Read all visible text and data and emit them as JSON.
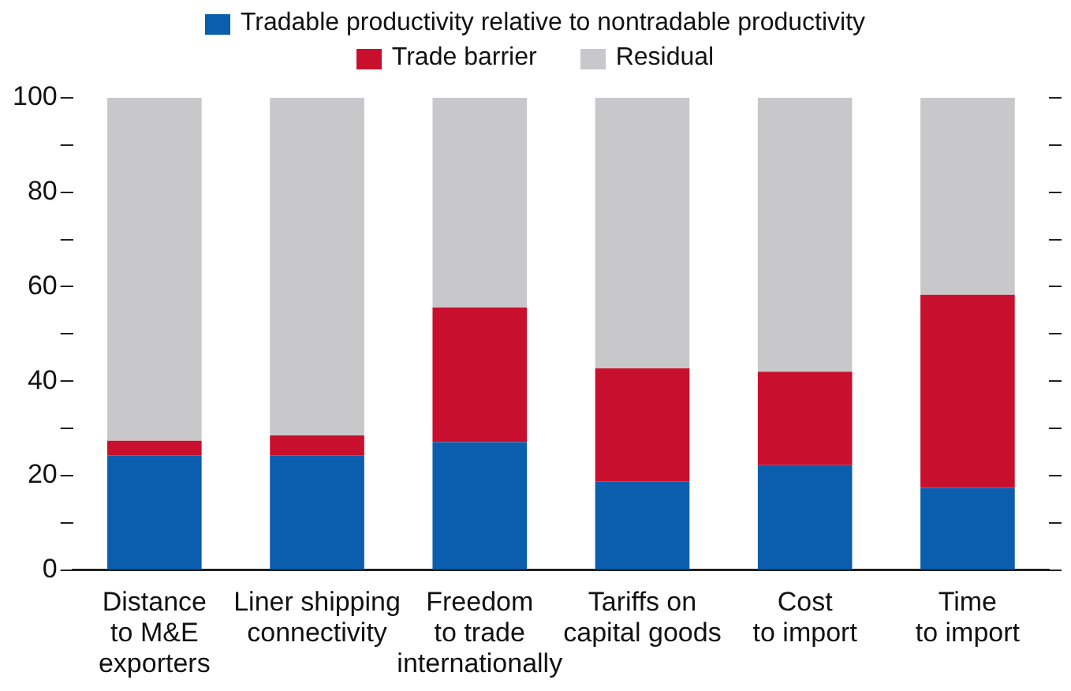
{
  "chart_data": {
    "type": "bar",
    "stacked": true,
    "categories": [
      "Distance\nto M&E\nexporters",
      "Liner shipping\nconnectivity",
      "Freedom\nto trade\ninternationally",
      "Tariffs on\ncapital goods",
      "Cost\nto import",
      "Time\nto import"
    ],
    "series": [
      {
        "name": "Tradable productivity relative to nontradable productivity",
        "color": "#0a5ead",
        "values": [
          24.3,
          24.3,
          27.1,
          18.8,
          22.2,
          17.4
        ]
      },
      {
        "name": "Trade barrier",
        "color": "#c8102e",
        "values": [
          3.1,
          4.2,
          28.5,
          23.9,
          19.8,
          40.9
        ]
      },
      {
        "name": "Residual",
        "color": "#c8c8ca",
        "values": [
          72.6,
          71.5,
          44.4,
          57.3,
          58.0,
          41.7
        ]
      }
    ],
    "ylim": [
      0,
      100
    ],
    "yticks": [
      0,
      {
        "value": 10,
        "label": null
      },
      20,
      {
        "value": 30,
        "label": null
      },
      40,
      {
        "value": 50,
        "label": null
      },
      60,
      {
        "value": 70,
        "label": null
      },
      80,
      {
        "value": 90,
        "label": null
      },
      100
    ],
    "grid": false,
    "legend": "top"
  }
}
